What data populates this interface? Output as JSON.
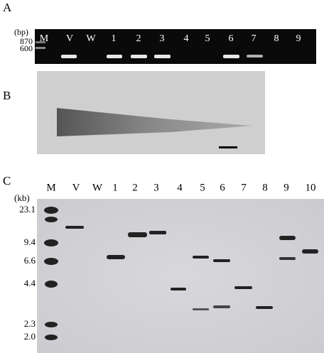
{
  "panels": [
    {
      "label": "A",
      "unit": "(bp)",
      "size_labels": [
        "870",
        "600"
      ],
      "lanes": [
        "M",
        "V",
        "W",
        "1",
        "2",
        "3",
        "4",
        "5",
        "6",
        "7",
        "8",
        "9"
      ]
    },
    {
      "label": "B"
    },
    {
      "label": "C",
      "unit": "(kb)",
      "size_labels": [
        "23.1",
        "9.4",
        "6.6",
        "4.4",
        "2.3",
        "2.0"
      ],
      "lanes": [
        "M",
        "V",
        "W",
        "1",
        "2",
        "3",
        "4",
        "5",
        "6",
        "7",
        "8",
        "9",
        "10"
      ]
    }
  ]
}
